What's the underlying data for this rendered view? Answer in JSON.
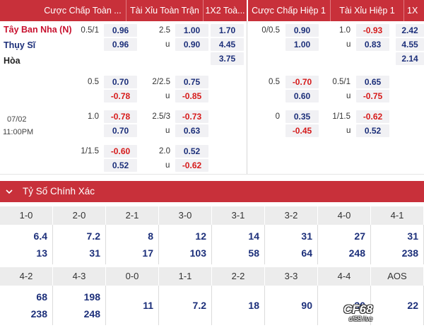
{
  "headers": {
    "ah_full": "Cược Chấp Toàn ...",
    "ou_full": "Tài Xỉu Toàn Trận",
    "x12_full": "1X2 Toà...",
    "ah_half": "Cược Chấp Hiệp 1",
    "ou_half": "Tài Xỉu Hiệp 1",
    "x12_half": "1X"
  },
  "teams": {
    "home": "Tây Ban Nha (N)",
    "away": "Thụy Sĩ",
    "draw": "Hòa"
  },
  "datetime": {
    "date": "07/02",
    "time": "11:00PM"
  },
  "rows": [
    {
      "ah_line": "0.5/1",
      "ah_home": "0.96",
      "ah_away": "0.96",
      "ou_line": "2.5",
      "ou_over": "1.00",
      "ou_u": "u",
      "ou_under": "0.90",
      "x1": "1.70",
      "x2": "4.45",
      "xd": "3.75",
      "hah_line": "0/0.5",
      "hah_home": "0.90",
      "hah_away": "1.00",
      "hou_line": "1.0",
      "hou_over": "-0.93",
      "hou_u": "u",
      "hou_under": "0.83",
      "hx1": "2.42",
      "hx2": "4.55",
      "hxd": "2.14"
    },
    {
      "ah_line": "0.5",
      "ah_home": "0.70",
      "ah_away": "-0.78",
      "ou_line": "2/2.5",
      "ou_over": "0.75",
      "ou_u": "u",
      "ou_under": "-0.85",
      "hah_line": "0.5",
      "hah_home": "-0.70",
      "hah_away": "0.60",
      "hou_line": "0.5/1",
      "hou_over": "0.65",
      "hou_u": "u",
      "hou_under": "-0.75"
    },
    {
      "ah_line": "1.0",
      "ah_home": "-0.78",
      "ah_away": "0.70",
      "ou_line": "2.5/3",
      "ou_over": "-0.73",
      "ou_u": "u",
      "ou_under": "0.63",
      "hah_line": "0",
      "hah_home": "0.35",
      "hah_away": "-0.45",
      "hou_line": "1/1.5",
      "hou_over": "-0.62",
      "hou_u": "u",
      "hou_under": "0.52"
    },
    {
      "ah_line": "1/1.5",
      "ah_home": "-0.60",
      "ah_away": "0.52",
      "ou_line": "2.0",
      "ou_over": "0.52",
      "ou_u": "u",
      "ou_under": "-0.62"
    }
  ],
  "section": {
    "title": "Tỷ Số Chính Xác"
  },
  "scores_row1": [
    {
      "score": "1-0",
      "home": "6.4",
      "away": "13"
    },
    {
      "score": "2-0",
      "home": "7.2",
      "away": "31"
    },
    {
      "score": "2-1",
      "home": "8",
      "away": "17"
    },
    {
      "score": "3-0",
      "home": "12",
      "away": "103"
    },
    {
      "score": "3-1",
      "home": "14",
      "away": "58"
    },
    {
      "score": "3-2",
      "home": "31",
      "away": "64"
    },
    {
      "score": "4-0",
      "home": "27",
      "away": "248"
    },
    {
      "score": "4-1",
      "home": "31",
      "away": "238"
    }
  ],
  "scores_row2": [
    {
      "score": "4-2",
      "home": "68",
      "away": "238"
    },
    {
      "score": "4-3",
      "home": "198",
      "away": "248"
    },
    {
      "score": "0-0",
      "single": "11"
    },
    {
      "score": "1-1",
      "single": "7.2"
    },
    {
      "score": "2-2",
      "single": "18"
    },
    {
      "score": "3-3",
      "single": "90"
    },
    {
      "score": "4-4",
      "single": "30"
    },
    {
      "score": "AOS",
      "single": "22"
    }
  ],
  "watermark": {
    "main": "CF68",
    "sub": "cf68.live"
  },
  "colors": {
    "header_red": "#c8303a",
    "blue": "#1c2f7a",
    "negative_red": "#d61a1a"
  }
}
